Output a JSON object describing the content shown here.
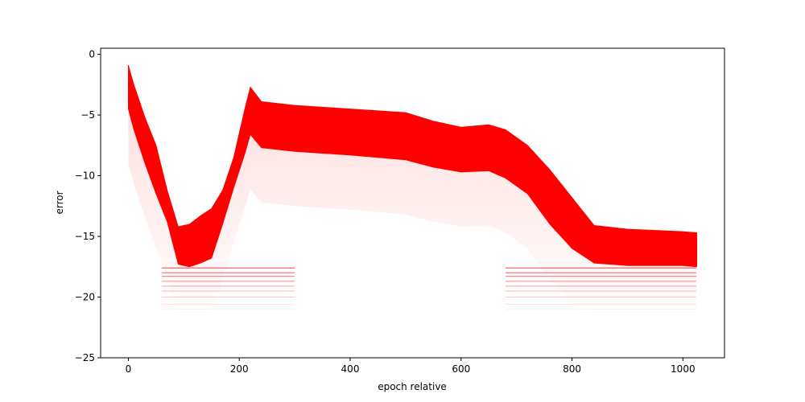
{
  "chart_data": {
    "type": "area",
    "title": "",
    "xlabel": "epoch relative",
    "ylabel": "error",
    "xlim": [
      -50,
      1075
    ],
    "ylim": [
      -25,
      0.5
    ],
    "grid": false,
    "x_ticks": [
      0,
      200,
      400,
      600,
      800,
      1000
    ],
    "x_tick_labels": [
      "0",
      "200",
      "400",
      "600",
      "800",
      "1000"
    ],
    "y_ticks": [
      0,
      -5,
      -10,
      -15,
      -20,
      -25
    ],
    "y_tick_labels": [
      "0",
      "−5",
      "−10",
      "−15",
      "−20",
      "−25"
    ],
    "series": [
      {
        "color": "#ff0000",
        "x": [
          0,
          10,
          30,
          50,
          70,
          90,
          110,
          130,
          150,
          170,
          190,
          210,
          220,
          240,
          300,
          400,
          500,
          550,
          600,
          650,
          680,
          720,
          760,
          800,
          840,
          900,
          1000,
          1025
        ],
        "upper": [
          -0.9,
          -2.5,
          -5.2,
          -7.5,
          -11.2,
          -14.2,
          -14.0,
          -13.3,
          -12.7,
          -11.2,
          -8.5,
          -4.5,
          -2.7,
          -3.9,
          -4.2,
          -4.5,
          -4.8,
          -5.5,
          -6.0,
          -5.8,
          -6.2,
          -7.5,
          -9.5,
          -11.8,
          -14.1,
          -14.4,
          -14.6,
          -14.7
        ],
        "lower": [
          -4.5,
          -6.2,
          -9.0,
          -11.5,
          -13.8,
          -17.3,
          -17.5,
          -17.2,
          -16.8,
          -14.0,
          -11.0,
          -8.2,
          -6.6,
          -7.7,
          -8.0,
          -8.3,
          -8.7,
          -9.3,
          -9.7,
          -9.6,
          -10.2,
          -11.5,
          -14.0,
          -16.0,
          -17.2,
          -17.4,
          -17.4,
          -17.5
        ]
      }
    ],
    "quantized_error_levels": [
      -17.6,
      -18.0,
      -18.3,
      -18.7,
      -19.1,
      -19.5,
      -20.0,
      -20.6,
      -21.0
    ],
    "quantized_spans": [
      [
        60,
        300
      ],
      [
        680,
        1025
      ]
    ]
  }
}
